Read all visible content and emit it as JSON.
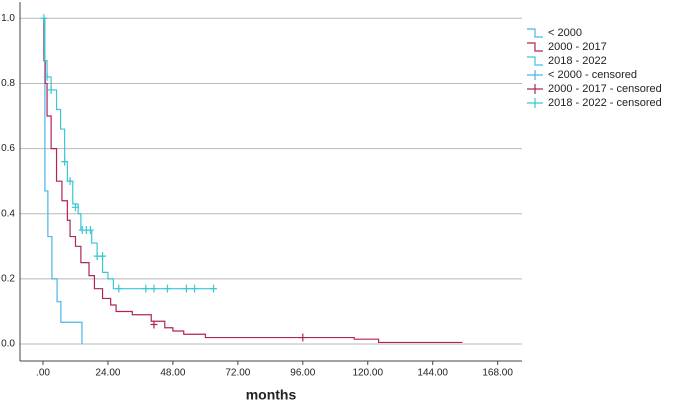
{
  "chart_data": {
    "type": "step",
    "x_label": "months",
    "xlim": [
      -8.5,
      177
    ],
    "ylim": [
      -0.052,
      1.05
    ],
    "xticks": [
      {
        "value": 0,
        "label": ".00"
      },
      {
        "value": 24,
        "label": "24.00"
      },
      {
        "value": 48,
        "label": "48.00"
      },
      {
        "value": 72,
        "label": "72.00"
      },
      {
        "value": 96,
        "label": "96.00"
      },
      {
        "value": 120,
        "label": "120.00"
      },
      {
        "value": 144,
        "label": "144.00"
      },
      {
        "value": 168,
        "label": "168.00"
      }
    ],
    "yticks": [
      {
        "value": 0,
        "label": "0.0"
      },
      0.2,
      0.4,
      0.6,
      0.8,
      {
        "value": 1,
        "label": "1.0"
      }
    ],
    "grid": true,
    "legend": "right",
    "series": [
      {
        "name": "< 2000",
        "color": "#4cb4e6",
        "style": "step",
        "x": [
          0,
          0.7,
          1.8,
          3.3,
          5.2,
          6.6,
          14.4
        ],
        "values": [
          1.0,
          0.47,
          0.33,
          0.2,
          0.13,
          0.067,
          0
        ]
      },
      {
        "name": "2000 - 2017",
        "color": "#b0245c",
        "style": "step",
        "x": [
          0,
          0.3,
          0.8,
          1.5,
          3,
          5,
          7,
          9,
          10,
          12,
          14,
          17,
          19,
          22,
          25,
          27,
          33,
          40,
          45,
          48,
          52,
          60,
          115,
          124,
          155
        ],
        "values": [
          1.0,
          0.87,
          0.8,
          0.7,
          0.6,
          0.5,
          0.44,
          0.38,
          0.33,
          0.3,
          0.25,
          0.21,
          0.17,
          0.14,
          0.12,
          0.1,
          0.09,
          0.07,
          0.05,
          0.04,
          0.03,
          0.02,
          0.015,
          0.005,
          0.005
        ]
      },
      {
        "name": "2018 - 2022",
        "color": "#3cc6d2",
        "style": "step",
        "x": [
          0,
          0.5,
          1.5,
          3,
          5,
          6.5,
          8,
          9,
          11,
          13,
          14,
          18,
          20,
          22,
          24,
          26,
          64
        ],
        "values": [
          1.0,
          0.87,
          0.82,
          0.78,
          0.72,
          0.66,
          0.56,
          0.5,
          0.43,
          0.4,
          0.35,
          0.31,
          0.27,
          0.22,
          0.2,
          0.17,
          0.17
        ]
      },
      {
        "name": "< 2000 - censored",
        "color": "#4cb4e6",
        "style": "censored",
        "x": [],
        "values": []
      },
      {
        "name": "2000 - 2017 - censored",
        "color": "#b0245c",
        "style": "censored",
        "x": [
          41,
          96
        ],
        "values": [
          0.06,
          0.02
        ]
      },
      {
        "name": "2018 - 2022 - censored",
        "color": "#3cc6d2",
        "style": "censored",
        "x": [
          0.3,
          1.5,
          3,
          8,
          10,
          12,
          14.5,
          16,
          17.5,
          20,
          22,
          28,
          38,
          41,
          46,
          53,
          56,
          63
        ],
        "values": [
          1.0,
          0.82,
          0.78,
          0.56,
          0.5,
          0.42,
          0.35,
          0.35,
          0.35,
          0.27,
          0.27,
          0.17,
          0.17,
          0.17,
          0.17,
          0.17,
          0.17,
          0.17
        ]
      }
    ]
  }
}
